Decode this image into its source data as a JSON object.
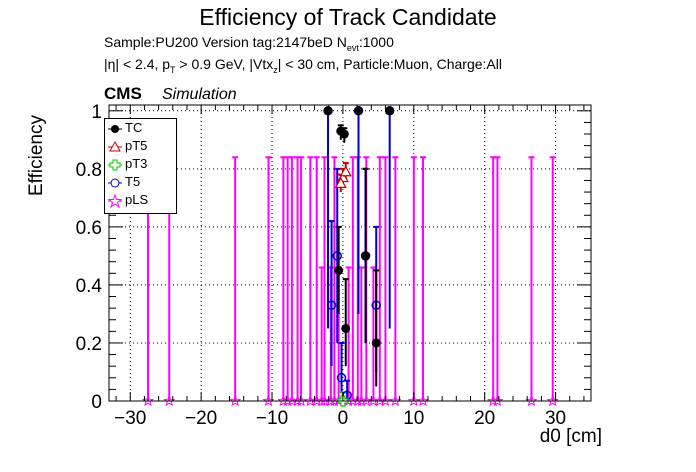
{
  "title": "Efficiency of Track Candidate",
  "subtitle_line1": "Sample:PU200   Version tag:2147beD  N",
  "subtitle_line1_sub": "evt",
  "subtitle_line1_tail": ":1000",
  "subtitle_line2": "|η| < 2.4, p",
  "subtitle_line2_sub": "T",
  "subtitle_line2_mid": " > 0.9 GeV, |Vtx",
  "subtitle_line2_sub2": "z",
  "subtitle_line2_tail": "| < 30 cm, Particle:Muon, Charge:All",
  "cms_label": "CMS",
  "simulation_label": "Simulation",
  "colors": {
    "TC": "#000000",
    "pT5": "#cc0000",
    "pT3": "#00cc00",
    "T5": "#0000cc",
    "pLS": "#ff00ff"
  },
  "chart_data": {
    "type": "scatter",
    "title": "Efficiency of Track Candidate",
    "xlabel": "d0 [cm]",
    "ylabel": "Efficiency",
    "xlim": [
      -33,
      35
    ],
    "ylim": [
      0,
      1.02
    ],
    "x_ticks": [
      -30,
      -20,
      -10,
      0,
      10,
      20,
      30
    ],
    "y_ticks": [
      0,
      0.2,
      0.4,
      0.6,
      0.8,
      1
    ],
    "grid": true,
    "legend_position": "top-left",
    "series": [
      {
        "name": "TC",
        "marker": "filled-circle",
        "color": "#000000",
        "points": [
          {
            "x": -2.1,
            "y": 1.0,
            "lo": 1.0,
            "hi": 1.0
          },
          {
            "x": -0.3,
            "y": 0.93,
            "lo": 0.9,
            "hi": 0.95
          },
          {
            "x": 0.2,
            "y": 0.92,
            "lo": 0.89,
            "hi": 0.94
          },
          {
            "x": -0.6,
            "y": 0.45,
            "lo": 0.3,
            "hi": 0.6
          },
          {
            "x": 0.4,
            "y": 0.25,
            "lo": 0.12,
            "hi": 0.42
          },
          {
            "x": 2.2,
            "y": 1.0,
            "lo": 1.0,
            "hi": 1.0
          },
          {
            "x": 3.2,
            "y": 0.5,
            "lo": 0.2,
            "hi": 0.8
          },
          {
            "x": 4.7,
            "y": 0.2,
            "lo": 0.05,
            "hi": 0.45
          },
          {
            "x": 6.6,
            "y": 1.0,
            "lo": 1.0,
            "hi": 1.0
          }
        ]
      },
      {
        "name": "pT5",
        "marker": "open-triangle",
        "color": "#cc0000",
        "points": [
          {
            "x": 0.0,
            "y": 0.77,
            "lo": 0.74,
            "hi": 0.8
          },
          {
            "x": 0.4,
            "y": 0.79,
            "lo": 0.76,
            "hi": 0.82
          },
          {
            "x": -0.3,
            "y": 0.75,
            "lo": 0.72,
            "hi": 0.78
          }
        ]
      },
      {
        "name": "pT3",
        "marker": "open-cross",
        "color": "#00cc00",
        "points": [
          {
            "x": 0.0,
            "y": 0.0,
            "lo": 0.0,
            "hi": 0.03
          }
        ]
      },
      {
        "name": "T5",
        "marker": "open-circle",
        "color": "#0000cc",
        "points": [
          {
            "x": -2.1,
            "y": 1.0,
            "lo": 0.25,
            "hi": 1.0
          },
          {
            "x": -1.6,
            "y": 0.33,
            "lo": 0.12,
            "hi": 0.62
          },
          {
            "x": -0.8,
            "y": 0.5,
            "lo": 0.2,
            "hi": 0.8
          },
          {
            "x": -0.2,
            "y": 0.08,
            "lo": 0.03,
            "hi": 0.2
          },
          {
            "x": 0.6,
            "y": 0.02,
            "lo": 0.0,
            "hi": 0.07
          },
          {
            "x": 2.2,
            "y": 1.0,
            "lo": 0.3,
            "hi": 1.0
          },
          {
            "x": 3.2,
            "y": 0.5,
            "lo": 0.2,
            "hi": 0.8
          },
          {
            "x": 4.7,
            "y": 0.33,
            "lo": 0.1,
            "hi": 0.6
          },
          {
            "x": 6.6,
            "y": 1.0,
            "lo": 0.25,
            "hi": 1.0
          }
        ]
      },
      {
        "name": "pLS",
        "marker": "open-star",
        "color": "#ff00ff",
        "points": [
          {
            "x": -27.5,
            "y": 0.0,
            "lo": 0.0,
            "hi": 0.84
          },
          {
            "x": -24.5,
            "y": 0.0,
            "lo": 0.0,
            "hi": 0.84
          },
          {
            "x": -15.2,
            "y": 0.0,
            "lo": 0.0,
            "hi": 0.84
          },
          {
            "x": -10.5,
            "y": 0.0,
            "lo": 0.0,
            "hi": 0.84
          },
          {
            "x": -8.4,
            "y": 0.0,
            "lo": 0.0,
            "hi": 0.84
          },
          {
            "x": -7.8,
            "y": 0.0,
            "lo": 0.0,
            "hi": 0.84
          },
          {
            "x": -7.2,
            "y": 0.0,
            "lo": 0.0,
            "hi": 0.84
          },
          {
            "x": -6.4,
            "y": 0.0,
            "lo": 0.0,
            "hi": 0.84
          },
          {
            "x": -5.9,
            "y": 0.0,
            "lo": 0.0,
            "hi": 0.84
          },
          {
            "x": -4.6,
            "y": 0.0,
            "lo": 0.0,
            "hi": 0.84
          },
          {
            "x": -3.7,
            "y": 0.0,
            "lo": 0.0,
            "hi": 0.84
          },
          {
            "x": -3.0,
            "y": 0.0,
            "lo": 0.0,
            "hi": 0.46
          },
          {
            "x": -2.6,
            "y": 0.0,
            "lo": 0.0,
            "hi": 0.84
          },
          {
            "x": -1.7,
            "y": 0.0,
            "lo": 0.0,
            "hi": 0.46
          },
          {
            "x": -1.2,
            "y": 0.0,
            "lo": 0.0,
            "hi": 0.84
          },
          {
            "x": -0.6,
            "y": 0.0,
            "lo": 0.0,
            "hi": 0.46
          },
          {
            "x": 0.8,
            "y": 0.0,
            "lo": 0.0,
            "hi": 0.46
          },
          {
            "x": 1.4,
            "y": 0.0,
            "lo": 0.0,
            "hi": 0.84
          },
          {
            "x": 2.1,
            "y": 0.0,
            "lo": 0.0,
            "hi": 0.84
          },
          {
            "x": 2.6,
            "y": 0.0,
            "lo": 0.0,
            "hi": 0.46
          },
          {
            "x": 3.3,
            "y": 0.0,
            "lo": 0.0,
            "hi": 0.84
          },
          {
            "x": 4.3,
            "y": 0.0,
            "lo": 0.0,
            "hi": 0.46
          },
          {
            "x": 5.2,
            "y": 0.0,
            "lo": 0.0,
            "hi": 0.84
          },
          {
            "x": 6.0,
            "y": 0.0,
            "lo": 0.0,
            "hi": 0.84
          },
          {
            "x": 7.4,
            "y": 0.0,
            "lo": 0.0,
            "hi": 0.84
          },
          {
            "x": 10.0,
            "y": 0.0,
            "lo": 0.0,
            "hi": 0.84
          },
          {
            "x": 11.3,
            "y": 0.0,
            "lo": 0.0,
            "hi": 0.84
          },
          {
            "x": 21.2,
            "y": 0.0,
            "lo": 0.0,
            "hi": 0.84
          },
          {
            "x": 21.8,
            "y": 0.0,
            "lo": 0.0,
            "hi": 0.84
          },
          {
            "x": 26.6,
            "y": 0.0,
            "lo": 0.0,
            "hi": 0.84
          },
          {
            "x": 29.6,
            "y": 0.0,
            "lo": 0.0,
            "hi": 0.84
          }
        ]
      }
    ]
  }
}
